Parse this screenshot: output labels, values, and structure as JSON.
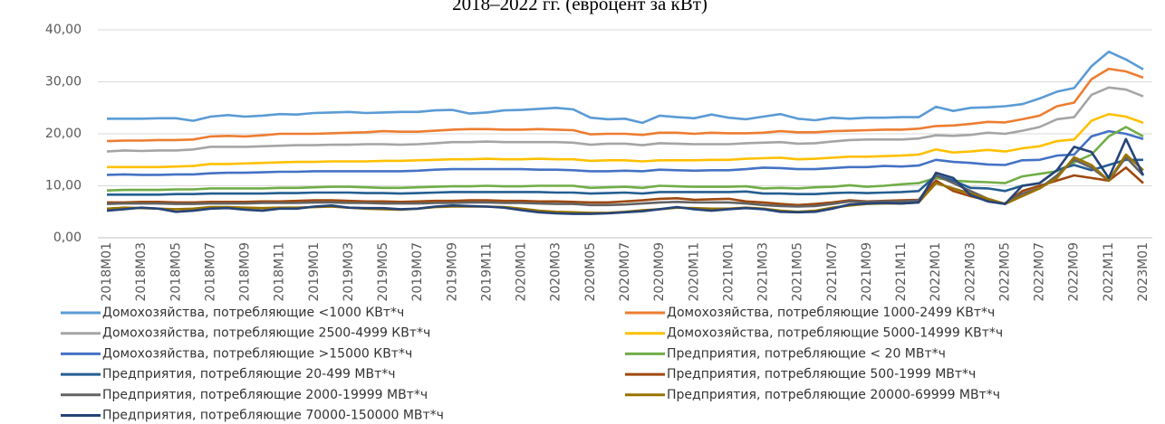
{
  "chart_data": {
    "type": "line",
    "title": "2018–2022 гг. (евроцент за кВт)",
    "categories": [
      "2018M01",
      null,
      "2018M03",
      null,
      "2018M05",
      null,
      "2018M07",
      null,
      "2018M09",
      null,
      "2018M11",
      null,
      "2019M01",
      null,
      "2019M03",
      null,
      "2019M05",
      null,
      "2019M07",
      null,
      "2019M09",
      null,
      "2019M11",
      null,
      "2020M01",
      null,
      "2020M03",
      null,
      "2020M05",
      null,
      "2020M07",
      null,
      "2020M09",
      null,
      "2020M11",
      null,
      "2021M01",
      null,
      "2021M03",
      null,
      "2021M05",
      null,
      "2021M07",
      null,
      "2021M09",
      null,
      "2021M11",
      null,
      "2022M01",
      null,
      "2022M03",
      null,
      "2022M05",
      null,
      "2022M07",
      null,
      "2022M09",
      null,
      "2022M11",
      null,
      "2023M01"
    ],
    "ylim": [
      0,
      40
    ],
    "yticks": [
      {
        "value": 0,
        "label": "0,00"
      },
      {
        "value": 10,
        "label": "10,00"
      },
      {
        "value": 20,
        "label": "20,00"
      },
      {
        "value": 30,
        "label": "30,00"
      },
      {
        "value": 40,
        "label": "40,00"
      }
    ],
    "grid": true,
    "series": [
      {
        "name": "Домохозяйства, потребляющие <1000 КВт*ч",
        "color": "#5b9bd5",
        "values": [
          22.9,
          22.9,
          22.9,
          23.0,
          23.0,
          22.5,
          23.3,
          23.6,
          23.3,
          23.5,
          23.8,
          23.7,
          24.0,
          24.1,
          24.2,
          24.0,
          24.1,
          24.2,
          24.2,
          24.5,
          24.6,
          23.9,
          24.1,
          24.5,
          24.6,
          24.8,
          25.0,
          24.7,
          23.1,
          22.8,
          22.9,
          22.1,
          23.5,
          23.2,
          23.0,
          23.7,
          23.1,
          22.8,
          23.3,
          23.8,
          22.9,
          22.6,
          23.1,
          22.9,
          23.1,
          23.1,
          23.2,
          23.2,
          25.2,
          24.4,
          25.0,
          25.1,
          25.3,
          25.7,
          26.8,
          28.1,
          28.8,
          33.0,
          35.8,
          34.3,
          32.4
        ]
      },
      {
        "name": "Домохозяйства, потребляющие 1000-2499 КВт*ч",
        "color": "#ed7d31",
        "values": [
          18.6,
          18.7,
          18.7,
          18.8,
          18.8,
          18.9,
          19.5,
          19.6,
          19.5,
          19.7,
          20.0,
          20.0,
          20.0,
          20.1,
          20.2,
          20.3,
          20.5,
          20.4,
          20.4,
          20.6,
          20.8,
          20.9,
          20.9,
          20.8,
          20.8,
          20.9,
          20.8,
          20.7,
          19.9,
          20.0,
          20.0,
          19.8,
          20.2,
          20.2,
          20.0,
          20.2,
          20.1,
          20.1,
          20.2,
          20.5,
          20.3,
          20.3,
          20.5,
          20.6,
          20.7,
          20.8,
          20.8,
          21.0,
          21.5,
          21.6,
          21.9,
          22.3,
          22.2,
          22.8,
          23.5,
          25.3,
          26.0,
          30.5,
          32.5,
          32.0,
          30.8
        ]
      },
      {
        "name": "Домохозяйства, потребляющие 2500-4999 КВт*ч",
        "color": "#a5a5a5",
        "values": [
          16.6,
          16.8,
          16.7,
          16.8,
          16.8,
          17.0,
          17.5,
          17.5,
          17.5,
          17.6,
          17.7,
          17.8,
          17.8,
          17.9,
          17.9,
          18.0,
          18.0,
          17.9,
          18.0,
          18.2,
          18.4,
          18.4,
          18.5,
          18.4,
          18.4,
          18.4,
          18.4,
          18.3,
          17.9,
          18.1,
          18.1,
          17.8,
          18.2,
          18.1,
          18.0,
          18.0,
          18.0,
          18.2,
          18.3,
          18.4,
          18.1,
          18.2,
          18.5,
          18.8,
          18.9,
          18.9,
          18.9,
          19.1,
          19.7,
          19.6,
          19.8,
          20.2,
          20.0,
          20.6,
          21.3,
          22.8,
          23.2,
          27.5,
          28.9,
          28.5,
          27.2
        ]
      },
      {
        "name": "Домохозяйства, потребляющие 5000-14999 КВт*ч",
        "color": "#ffc000",
        "values": [
          13.6,
          13.6,
          13.6,
          13.6,
          13.7,
          13.8,
          14.2,
          14.2,
          14.3,
          14.4,
          14.5,
          14.6,
          14.6,
          14.7,
          14.7,
          14.7,
          14.8,
          14.8,
          14.9,
          15.0,
          15.1,
          15.1,
          15.2,
          15.1,
          15.1,
          15.2,
          15.1,
          15.1,
          14.8,
          14.9,
          14.9,
          14.7,
          14.9,
          14.9,
          14.9,
          15.0,
          15.0,
          15.2,
          15.3,
          15.4,
          15.1,
          15.2,
          15.4,
          15.6,
          15.6,
          15.7,
          15.8,
          16.0,
          17.0,
          16.4,
          16.6,
          16.9,
          16.6,
          17.2,
          17.6,
          18.6,
          18.9,
          22.5,
          23.8,
          23.3,
          22.1
        ]
      },
      {
        "name": "Домохозяйства, потребляющие >15000 КВт*ч",
        "color": "#4472c4",
        "values": [
          12.1,
          12.2,
          12.1,
          12.1,
          12.2,
          12.2,
          12.4,
          12.5,
          12.5,
          12.6,
          12.7,
          12.7,
          12.8,
          12.8,
          12.8,
          12.8,
          12.8,
          12.8,
          12.9,
          13.1,
          13.2,
          13.2,
          13.2,
          13.2,
          13.2,
          13.1,
          13.1,
          13.0,
          12.8,
          12.8,
          12.9,
          12.8,
          13.1,
          13.0,
          12.9,
          13.0,
          13.0,
          13.2,
          13.5,
          13.4,
          13.2,
          13.2,
          13.4,
          13.6,
          13.6,
          13.8,
          13.7,
          13.9,
          15.0,
          14.6,
          14.4,
          14.1,
          14.0,
          14.9,
          15.0,
          15.8,
          16.0,
          19.5,
          20.5,
          20.0,
          19.0
        ]
      },
      {
        "name": "Предприятия, потребляющие < 20 МВт*ч",
        "color": "#70ad47",
        "values": [
          9.1,
          9.2,
          9.2,
          9.2,
          9.3,
          9.3,
          9.5,
          9.5,
          9.5,
          9.5,
          9.6,
          9.6,
          9.7,
          9.8,
          9.8,
          9.7,
          9.6,
          9.6,
          9.7,
          9.8,
          9.9,
          9.9,
          10.0,
          9.9,
          9.9,
          10.0,
          10.0,
          10.0,
          9.6,
          9.7,
          9.8,
          9.6,
          10.0,
          9.9,
          9.8,
          9.8,
          9.8,
          9.9,
          9.5,
          9.6,
          9.5,
          9.7,
          9.8,
          10.1,
          9.8,
          10.0,
          10.3,
          10.5,
          11.5,
          11.0,
          10.8,
          10.7,
          10.5,
          11.8,
          12.3,
          12.8,
          14.5,
          16.0,
          19.5,
          21.3,
          19.5
        ]
      },
      {
        "name": "Предприятия, потребляющие  20-499 МВт*ч",
        "color": "#255e91",
        "values": [
          8.3,
          8.3,
          8.3,
          8.3,
          8.4,
          8.4,
          8.5,
          8.5,
          8.5,
          8.5,
          8.6,
          8.6,
          8.7,
          8.7,
          8.7,
          8.6,
          8.6,
          8.5,
          8.6,
          8.7,
          8.8,
          8.8,
          8.8,
          8.8,
          8.8,
          8.8,
          8.7,
          8.7,
          8.5,
          8.6,
          8.7,
          8.5,
          8.8,
          8.8,
          8.8,
          8.8,
          8.8,
          8.9,
          8.5,
          8.5,
          8.4,
          8.4,
          8.6,
          8.7,
          8.6,
          8.7,
          8.8,
          9.0,
          12.0,
          11.0,
          9.6,
          9.5,
          9.0,
          10.0,
          10.5,
          13.0,
          14.0,
          13.0,
          14.0,
          15.0,
          15.0
        ]
      },
      {
        "name": "Предприятия, потребляющие  500-1999 МВт*ч",
        "color": "#9e480e",
        "values": [
          6.8,
          6.8,
          6.9,
          6.9,
          6.8,
          6.8,
          6.9,
          6.9,
          6.9,
          7.0,
          7.0,
          7.1,
          7.2,
          7.2,
          7.1,
          7.0,
          7.0,
          6.9,
          7.0,
          7.1,
          7.1,
          7.2,
          7.2,
          7.1,
          7.1,
          7.0,
          7.0,
          6.9,
          6.8,
          6.8,
          7.0,
          7.2,
          7.5,
          7.6,
          7.3,
          7.4,
          7.5,
          7.0,
          6.8,
          6.5,
          6.3,
          6.5,
          6.8,
          7.2,
          7.0,
          7.1,
          7.2,
          7.3,
          11.0,
          9.0,
          8.0,
          7.2,
          6.6,
          9.0,
          10.0,
          11.0,
          12.0,
          11.5,
          11.0,
          13.5,
          10.5
        ]
      },
      {
        "name": "Предприятия, потребляющие  2000-19999 МВт*ч",
        "color": "#636363",
        "values": [
          6.5,
          6.6,
          6.6,
          6.6,
          6.5,
          6.5,
          6.6,
          6.6,
          6.6,
          6.7,
          6.7,
          6.7,
          6.8,
          6.8,
          6.7,
          6.7,
          6.6,
          6.6,
          6.6,
          6.7,
          6.7,
          6.8,
          6.8,
          6.7,
          6.7,
          6.6,
          6.5,
          6.5,
          6.3,
          6.3,
          6.4,
          6.6,
          6.8,
          6.9,
          6.8,
          6.8,
          6.8,
          6.6,
          6.3,
          6.1,
          6.0,
          6.1,
          6.5,
          7.0,
          6.9,
          7.0,
          7.0,
          7.2,
          12.0,
          10.5,
          9.0,
          7.5,
          6.5,
          8.5,
          9.5,
          12.0,
          15.0,
          13.5,
          11.0,
          15.5,
          12.0
        ]
      },
      {
        "name": "Предприятия, потребляющие  20000-69999 МВт*ч",
        "color": "#997300",
        "values": [
          5.6,
          5.8,
          5.7,
          5.6,
          5.5,
          5.6,
          5.9,
          5.9,
          5.8,
          5.7,
          5.8,
          5.8,
          5.9,
          6.0,
          5.8,
          5.6,
          5.5,
          5.4,
          5.6,
          5.9,
          6.0,
          6.0,
          6.0,
          5.9,
          5.6,
          5.2,
          5.0,
          4.9,
          4.8,
          4.8,
          5.0,
          5.3,
          5.5,
          5.8,
          5.7,
          5.6,
          5.6,
          5.8,
          5.6,
          5.2,
          5.0,
          5.2,
          5.8,
          6.2,
          6.5,
          6.6,
          6.6,
          6.8,
          10.5,
          9.5,
          8.5,
          7.5,
          6.5,
          8.0,
          9.5,
          11.5,
          15.5,
          14.0,
          11.0,
          16.0,
          13.0
        ]
      },
      {
        "name": "Предприятия, потребляющие  70000-150000 МВт*ч",
        "color": "#264478",
        "values": [
          5.2,
          5.5,
          5.8,
          5.6,
          5.0,
          5.2,
          5.6,
          5.7,
          5.4,
          5.2,
          5.6,
          5.6,
          6.0,
          6.2,
          5.8,
          5.7,
          5.7,
          5.5,
          5.6,
          6.0,
          6.2,
          6.1,
          6.0,
          5.8,
          5.3,
          4.9,
          4.7,
          4.6,
          4.6,
          4.7,
          4.9,
          5.1,
          5.5,
          5.9,
          5.5,
          5.2,
          5.5,
          5.7,
          5.5,
          5.0,
          4.9,
          5.0,
          5.6,
          6.4,
          6.6,
          6.7,
          6.6,
          6.8,
          12.5,
          11.5,
          8.2,
          7.0,
          6.5,
          10.0,
          10.5,
          13.0,
          17.5,
          16.5,
          11.5,
          19.0,
          12.0
        ]
      }
    ]
  }
}
